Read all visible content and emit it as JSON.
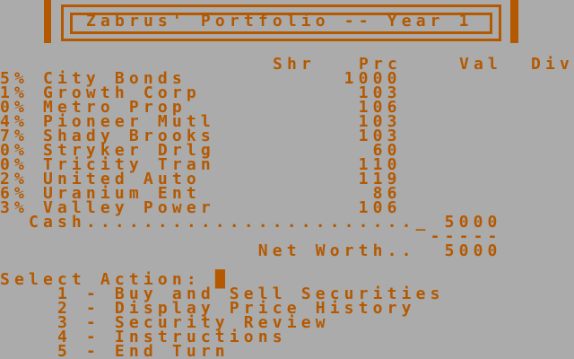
{
  "screen": {
    "colors": {
      "background": "#ABABAB",
      "text": "#B45900"
    },
    "title_bar": {
      "title": "Zabrus' Portfolio -- Year 1"
    },
    "portfolio": {
      "headers": [
        "Shr",
        "Prc",
        "Val",
        "Div"
      ],
      "securities": [
        {
          "yield": "5%",
          "name": "City Bonds",
          "prc": "1000"
        },
        {
          "yield": "1%",
          "name": "Growth Corp",
          "prc": "103"
        },
        {
          "yield": "0%",
          "name": "Metro Prop",
          "prc": "106"
        },
        {
          "yield": "4%",
          "name": "Pioneer Mutl",
          "prc": "103"
        },
        {
          "yield": "7%",
          "name": "Shady Brooks",
          "prc": "103"
        },
        {
          "yield": "0%",
          "name": "Stryker Drlg",
          "prc": "60"
        },
        {
          "yield": "0%",
          "name": "Tricity Tran",
          "prc": "110"
        },
        {
          "yield": "2%",
          "name": "United Auto",
          "prc": "119"
        },
        {
          "yield": "6%",
          "name": "Uranium Ent",
          "prc": "86"
        },
        {
          "yield": "3%",
          "name": "Valley Power",
          "prc": "106"
        }
      ],
      "cash_label": "Cash",
      "cash_field_prefix": "_",
      "cash_value": "5000",
      "total_underline": "-----",
      "net_worth_label": "Net Worth..",
      "net_worth_value": "5000"
    },
    "prompt": {
      "label": "Select Action:",
      "cursor_char": "█"
    },
    "menu": [
      {
        "key": "1",
        "separator": "-",
        "label": "Buy and Sell Securities"
      },
      {
        "key": "2",
        "separator": "-",
        "label": "Display Price History"
      },
      {
        "key": "3",
        "separator": "-",
        "label": "Security Review"
      },
      {
        "key": "4",
        "separator": "-",
        "label": "Instructions"
      },
      {
        "key": "5",
        "separator": "-",
        "label": "End Turn"
      }
    ]
  }
}
